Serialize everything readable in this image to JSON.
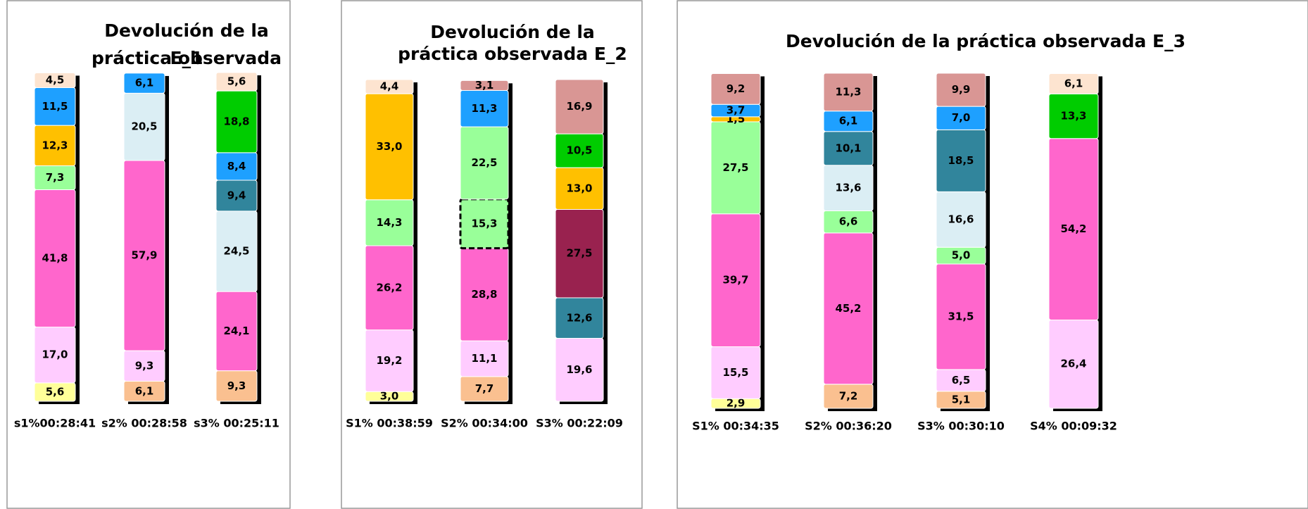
{
  "chart_data": [
    {
      "type": "stacked_bar",
      "title": "Devolución de la práctica observada E_1",
      "categories": [
        "s1%00:28:41",
        "s2% 00:28:58",
        "s3% 00:25:11"
      ],
      "stacks": [
        {
          "values": [
            5.6,
            17.0,
            41.8,
            7.3,
            12.3,
            11.5,
            4.5
          ],
          "value_labels": [
            "5,6",
            "17,0",
            "41,8",
            "7,3",
            "12,3",
            "11,5",
            "4,5"
          ],
          "colors": [
            "#ffff99",
            "#ffccff",
            "#ff66cc",
            "#99ff99",
            "#ffc000",
            "#1ea0ff",
            "#fde4d0"
          ]
        },
        {
          "values": [
            6.1,
            9.3,
            57.9,
            20.5,
            6.1
          ],
          "value_labels": [
            "6,1",
            "9,3",
            "57,9",
            "20,5",
            "6,1"
          ],
          "colors": [
            "#fac090",
            "#ffccff",
            "#ff66cc",
            "#dbeef4",
            "#1ea0ff"
          ]
        },
        {
          "values": [
            9.3,
            24.1,
            24.5,
            9.4,
            8.4,
            18.8,
            5.6
          ],
          "value_labels": [
            "9,3",
            "24,1",
            "24,5",
            "9,4",
            "8,4",
            "18,8",
            "5,6"
          ],
          "colors": [
            "#fac090",
            "#ff66cc",
            "#dbeef4",
            "#31859c",
            "#1ea0ff",
            "#00cc00",
            "#fde4d0"
          ]
        }
      ]
    },
    {
      "type": "stacked_bar",
      "title": "Devolución de la práctica observada E_2",
      "categories": [
        "S1% 00:38:59",
        "S2% 00:34:00",
        "S3% 00:22:09"
      ],
      "stacks": [
        {
          "values": [
            3.0,
            19.2,
            26.2,
            14.3,
            33.0,
            4.4
          ],
          "value_labels": [
            "3,0",
            "19,2",
            "26,2",
            "14,3",
            "33,0",
            "4,4"
          ],
          "colors": [
            "#ffff99",
            "#ffccff",
            "#ff66cc",
            "#99ff99",
            "#ffc000",
            "#fde4d0"
          ]
        },
        {
          "values": [
            7.7,
            11.1,
            28.8,
            15.3,
            22.5,
            11.3,
            3.1
          ],
          "value_labels": [
            "7,7",
            "11,1",
            "28,8",
            "15,3",
            "22,5",
            "11,3",
            "3,1"
          ],
          "colors": [
            "#fac090",
            "#ffccff",
            "#ff66cc",
            "#99ff99",
            "#99ff99",
            "#1ea0ff",
            "#d99694"
          ],
          "dashed": [
            false,
            false,
            false,
            true,
            false,
            false,
            false
          ]
        },
        {
          "values": [
            19.6,
            12.6,
            27.5,
            13.0,
            10.5,
            16.9
          ],
          "value_labels": [
            "19,6",
            "12,6",
            "27,5",
            "13,0",
            "10,5",
            "16,9"
          ],
          "colors": [
            "#ffccff",
            "#31859c",
            "#99224f",
            "#ffc000",
            "#00cc00",
            "#d99694"
          ]
        }
      ]
    },
    {
      "type": "stacked_bar",
      "title": "Devolución de la práctica observada E_3",
      "categories": [
        "S1% 00:34:35",
        "S2% 00:36:20",
        "S3% 00:30:10",
        "S4% 00:09:32"
      ],
      "stacks": [
        {
          "values": [
            2.9,
            15.5,
            39.7,
            27.5,
            1.5,
            3.7,
            9.2
          ],
          "value_labels": [
            "2,9",
            "15,5",
            "39,7",
            "27,5",
            "1,5",
            "3,7",
            "9,2"
          ],
          "colors": [
            "#ffff99",
            "#ffccff",
            "#ff66cc",
            "#99ff99",
            "#ffc000",
            "#1ea0ff",
            "#d99694"
          ]
        },
        {
          "values": [
            7.2,
            45.2,
            6.6,
            13.6,
            10.1,
            6.1,
            11.3
          ],
          "value_labels": [
            "7,2",
            "45,2",
            "6,6",
            "13,6",
            "10,1",
            "6,1",
            "11,3"
          ],
          "colors": [
            "#fac090",
            "#ff66cc",
            "#99ff99",
            "#dbeef4",
            "#31859c",
            "#1ea0ff",
            "#d99694"
          ]
        },
        {
          "values": [
            5.1,
            6.5,
            31.5,
            5.0,
            16.6,
            18.5,
            7.0,
            9.9
          ],
          "value_labels": [
            "5,1",
            "6,5",
            "31,5",
            "5,0",
            "16,6",
            "18,5",
            "7,0",
            "9,9"
          ],
          "colors": [
            "#fac090",
            "#ffccff",
            "#ff66cc",
            "#99ff99",
            "#dbeef4",
            "#31859c",
            "#1ea0ff",
            "#d99694"
          ]
        },
        {
          "values": [
            26.4,
            54.2,
            13.3,
            6.1
          ],
          "value_labels": [
            "26,4",
            "54,2",
            "13,3",
            "6,1"
          ],
          "colors": [
            "#ffccff",
            "#ff66cc",
            "#00cc00",
            "#fde4d0"
          ]
        }
      ]
    }
  ]
}
